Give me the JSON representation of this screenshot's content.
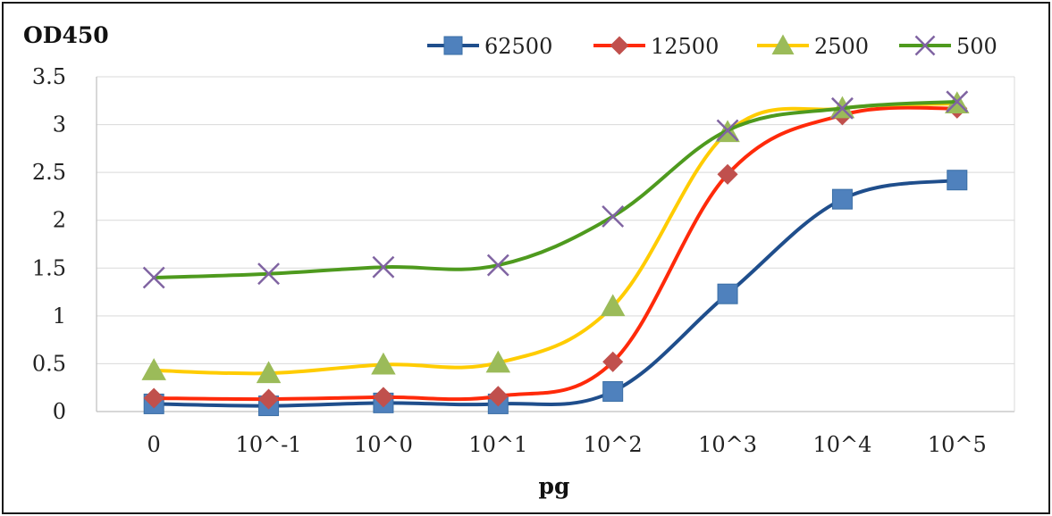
{
  "chart_data": {
    "type": "line",
    "title": "",
    "ylabel": "OD450",
    "xlabel": "pg",
    "categories": [
      "0",
      "10^-1",
      "10^0",
      "10^1",
      "10^2",
      "10^3",
      "10^4",
      "10^5"
    ],
    "ylim": [
      0,
      3.5
    ],
    "yticks": [
      0,
      0.5,
      1,
      1.5,
      2,
      2.5,
      3,
      3.5
    ],
    "ytick_labels": [
      "0",
      "0.5",
      "1",
      "1.5",
      "2",
      "2.5",
      "3",
      "3.5"
    ],
    "grid": true,
    "legend_position": "top-right",
    "series": [
      {
        "name": "62500",
        "marker": "square",
        "line_color": "#1f4e8c",
        "marker_color": "#4f81bd",
        "values": [
          0.08,
          0.06,
          0.09,
          0.08,
          0.21,
          1.23,
          2.22,
          2.42
        ]
      },
      {
        "name": "12500",
        "marker": "diamond",
        "line_color": "#ff2a0a",
        "marker_color": "#c0504d",
        "values": [
          0.14,
          0.13,
          0.15,
          0.16,
          0.52,
          2.48,
          3.1,
          3.17
        ]
      },
      {
        "name": "2500",
        "marker": "triangle",
        "line_color": "#ffcc00",
        "marker_color": "#9bbb59",
        "values": [
          0.43,
          0.4,
          0.49,
          0.51,
          1.1,
          2.92,
          3.17,
          3.22
        ]
      },
      {
        "name": "500",
        "marker": "cross",
        "line_color": "#4e9a1e",
        "marker_color": "#8064a2",
        "values": [
          1.4,
          1.44,
          1.51,
          1.53,
          2.04,
          2.94,
          3.17,
          3.24
        ]
      }
    ]
  }
}
